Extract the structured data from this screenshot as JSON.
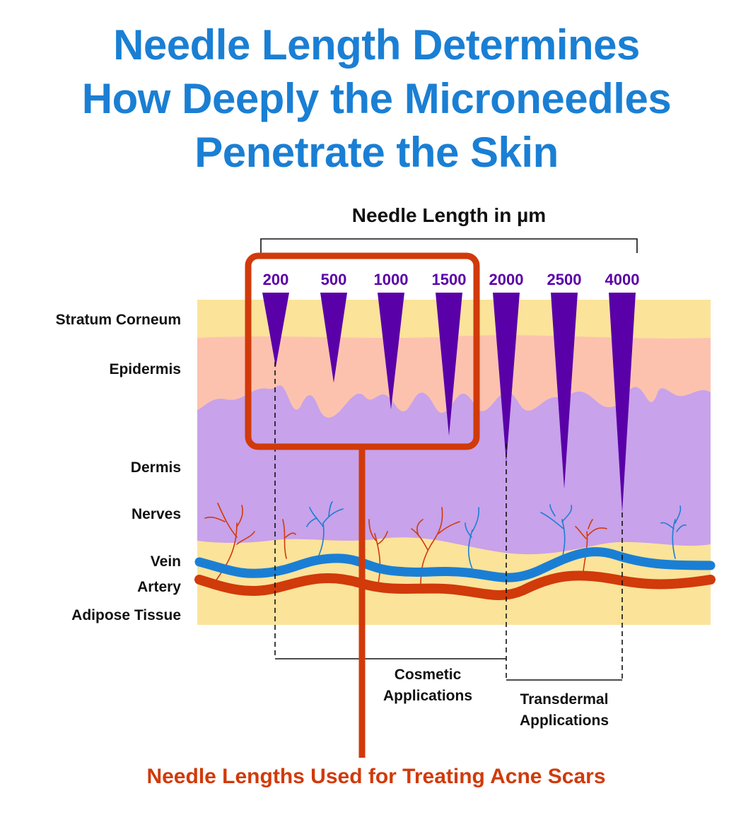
{
  "title": {
    "line1": "Needle Length Determines",
    "line2": "How Deeply the Microneedles",
    "line3": "Penetrate the Skin"
  },
  "scale_label": "Needle Length in µm",
  "needles": [
    {
      "label": "200",
      "depth": 200
    },
    {
      "label": "500",
      "depth": 500
    },
    {
      "label": "1000",
      "depth": 1000
    },
    {
      "label": "1500",
      "depth": 1500
    },
    {
      "label": "2000",
      "depth": 2000
    },
    {
      "label": "2500",
      "depth": 2500
    },
    {
      "label": "4000",
      "depth": 4000
    }
  ],
  "layers": {
    "stratum_corneum": "Stratum Corneum",
    "epidermis": "Epidermis",
    "dermis": "Dermis",
    "nerves": "Nerves",
    "vein": "Vein",
    "artery": "Artery",
    "adipose": "Adipose Tissue"
  },
  "cosmetic": {
    "line1": "Cosmetic",
    "line2": "Applications"
  },
  "transdermal": {
    "line1": "Transdermal",
    "line2": "Applications"
  },
  "callout": "Needle Lengths Used for Treating Acne Scars",
  "colors": {
    "title": "#1a7fd4",
    "needle": "#5a00a8",
    "highlight": "#d13a0a",
    "stratum": "#fbe39a",
    "epidermis": "#fcc2ae",
    "dermis": "#c8a2ea",
    "adipose": "#fbe39a",
    "vein": "#1a7fd4",
    "artery": "#d13a0a"
  }
}
